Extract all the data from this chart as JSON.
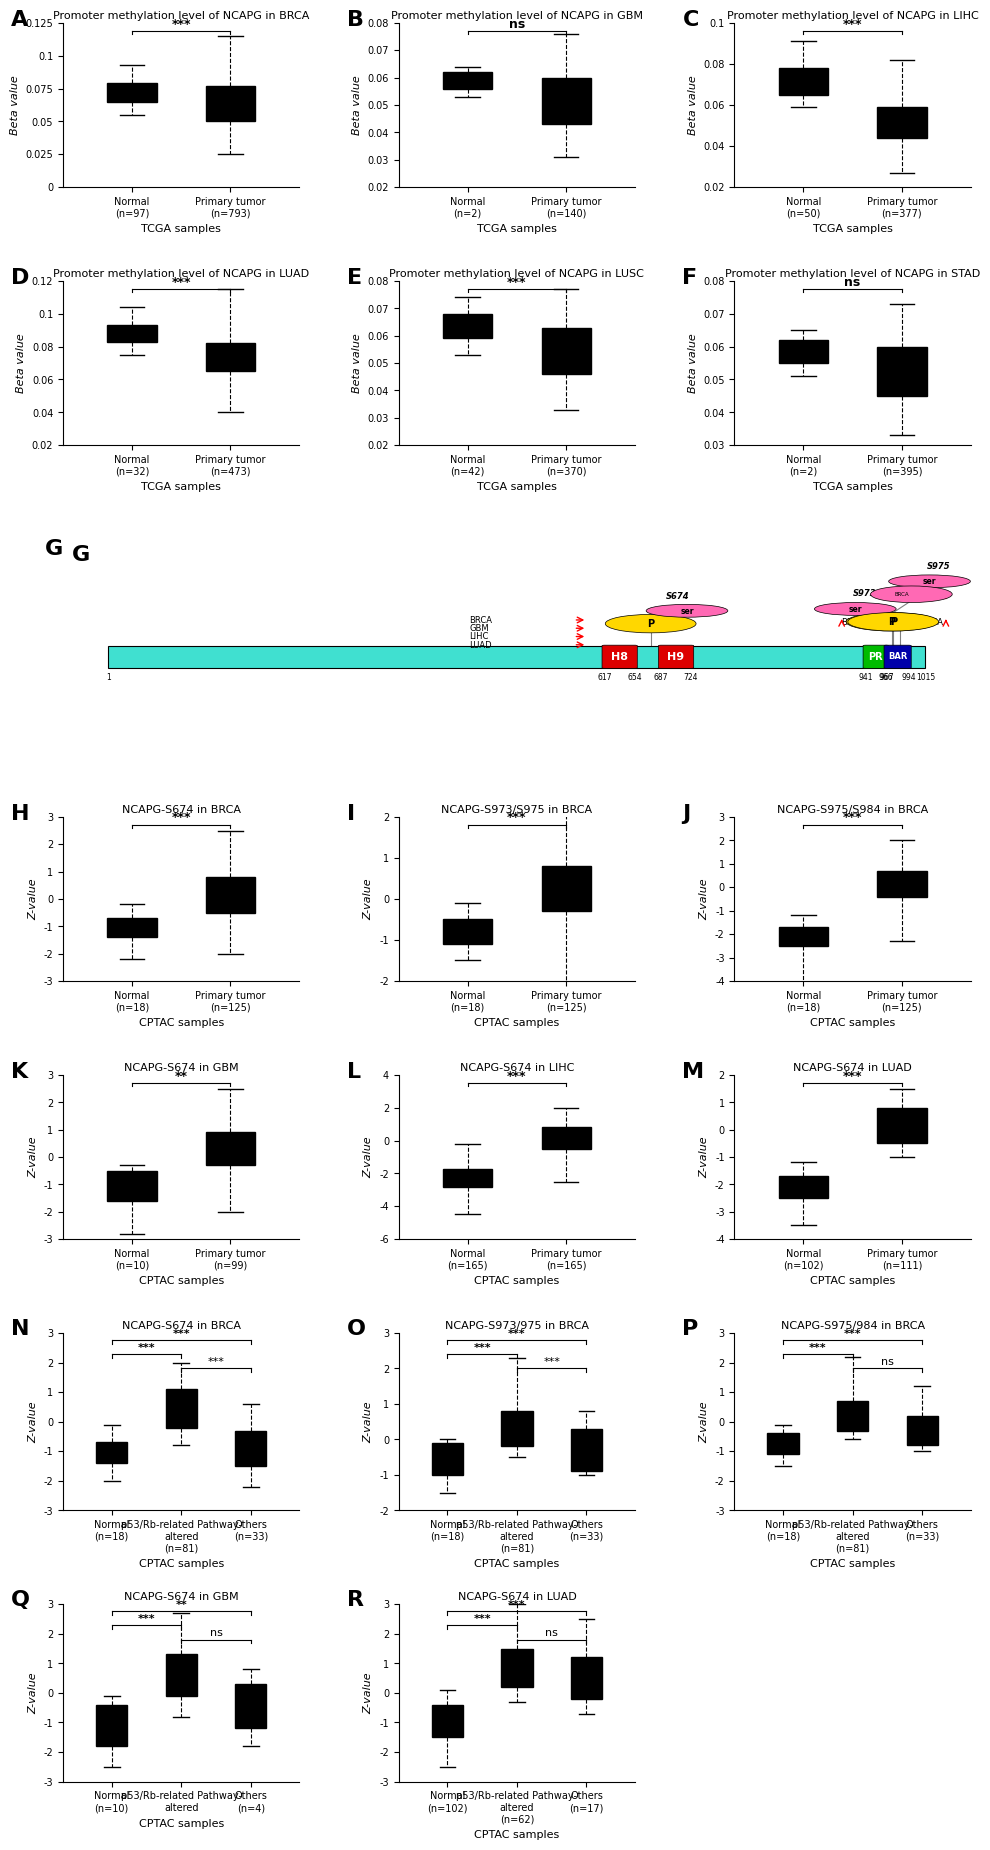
{
  "A": {
    "title": "Promoter methylation level of NCAPG in BRCA",
    "ylabel": "Beta value",
    "xlabel": "TCGA samples",
    "sig": "***",
    "groups": [
      "Normal\n(n=97)",
      "Primary tumor\n(n=793)"
    ],
    "colors": [
      "#4472C4",
      "#FF4500"
    ],
    "ylim": [
      0,
      0.125
    ],
    "yticks": [
      0,
      0.025,
      0.05,
      0.075,
      0.1,
      0.125
    ],
    "boxes": [
      {
        "med": 0.072,
        "q1": 0.065,
        "q3": 0.079,
        "whislo": 0.055,
        "whishi": 0.093
      },
      {
        "med": 0.065,
        "q1": 0.05,
        "q3": 0.077,
        "whislo": 0.025,
        "whishi": 0.115
      }
    ]
  },
  "B": {
    "title": "Promoter methylation level of NCAPG in GBM",
    "ylabel": "Beta value",
    "xlabel": "TCGA samples",
    "sig": "ns",
    "groups": [
      "Normal\n(n=2)",
      "Primary tumor\n(n=140)"
    ],
    "colors": [
      "#4472C4",
      "#FF4500"
    ],
    "ylim": [
      0.02,
      0.08
    ],
    "yticks": [
      0.02,
      0.03,
      0.04,
      0.05,
      0.06,
      0.07,
      0.08
    ],
    "boxes": [
      {
        "med": 0.059,
        "q1": 0.056,
        "q3": 0.062,
        "whislo": 0.053,
        "whishi": 0.064
      },
      {
        "med": 0.051,
        "q1": 0.043,
        "q3": 0.06,
        "whislo": 0.031,
        "whishi": 0.076
      }
    ]
  },
  "C": {
    "title": "Promoter methylation level of NCAPG in LIHC",
    "ylabel": "Beta value",
    "xlabel": "TCGA samples",
    "sig": "***",
    "groups": [
      "Normal\n(n=50)",
      "Primary tumor\n(n=377)"
    ],
    "colors": [
      "#4472C4",
      "#FF4500"
    ],
    "ylim": [
      0.02,
      0.1
    ],
    "yticks": [
      0.02,
      0.04,
      0.06,
      0.08,
      0.1
    ],
    "boxes": [
      {
        "med": 0.071,
        "q1": 0.065,
        "q3": 0.078,
        "whislo": 0.059,
        "whishi": 0.091
      },
      {
        "med": 0.051,
        "q1": 0.044,
        "q3": 0.059,
        "whislo": 0.027,
        "whishi": 0.082
      }
    ]
  },
  "D": {
    "title": "Promoter methylation level of NCAPG in LUAD",
    "ylabel": "Beta value",
    "xlabel": "TCGA samples",
    "sig": "***",
    "groups": [
      "Normal\n(n=32)",
      "Primary tumor\n(n=473)"
    ],
    "colors": [
      "#4472C4",
      "#FF4500"
    ],
    "ylim": [
      0.02,
      0.12
    ],
    "yticks": [
      0.02,
      0.04,
      0.06,
      0.08,
      0.1,
      0.12
    ],
    "boxes": [
      {
        "med": 0.087,
        "q1": 0.083,
        "q3": 0.093,
        "whislo": 0.075,
        "whishi": 0.104
      },
      {
        "med": 0.077,
        "q1": 0.065,
        "q3": 0.082,
        "whislo": 0.04,
        "whishi": 0.115
      }
    ]
  },
  "E": {
    "title": "Promoter methylation level of NCAPG in LUSC",
    "ylabel": "Beta value",
    "xlabel": "TCGA samples",
    "sig": "***",
    "groups": [
      "Normal\n(n=42)",
      "Primary tumor\n(n=370)"
    ],
    "colors": [
      "#4472C4",
      "#FF4500"
    ],
    "ylim": [
      0.02,
      0.08
    ],
    "yticks": [
      0.02,
      0.03,
      0.04,
      0.05,
      0.06,
      0.07,
      0.08
    ],
    "boxes": [
      {
        "med": 0.063,
        "q1": 0.059,
        "q3": 0.068,
        "whislo": 0.053,
        "whishi": 0.074
      },
      {
        "med": 0.055,
        "q1": 0.046,
        "q3": 0.063,
        "whislo": 0.033,
        "whishi": 0.077
      }
    ]
  },
  "F": {
    "title": "Promoter methylation level of NCAPG in STAD",
    "ylabel": "Beta value",
    "xlabel": "TCGA samples",
    "sig": "ns",
    "groups": [
      "Normal\n(n=2)",
      "Primary tumor\n(n=395)"
    ],
    "colors": [
      "#4472C4",
      "#FF4500"
    ],
    "ylim": [
      0.03,
      0.08
    ],
    "yticks": [
      0.03,
      0.04,
      0.05,
      0.06,
      0.07,
      0.08
    ],
    "boxes": [
      {
        "med": 0.058,
        "q1": 0.055,
        "q3": 0.062,
        "whislo": 0.051,
        "whishi": 0.065
      },
      {
        "med": 0.052,
        "q1": 0.045,
        "q3": 0.06,
        "whislo": 0.033,
        "whishi": 0.073
      }
    ]
  },
  "H": {
    "title": "NCAPG-S674 in BRCA",
    "ylabel": "Z-value",
    "xlabel": "CPTAC samples",
    "sig": "***",
    "groups": [
      "Normal\n(n=18)",
      "Primary tumor\n(n=125)"
    ],
    "colors": [
      "#4472C4",
      "#FF4500"
    ],
    "ylim": [
      -3,
      3
    ],
    "yticks": [
      -3,
      -2,
      -1,
      0,
      1,
      2,
      3
    ],
    "boxes": [
      {
        "med": -1.0,
        "q1": -1.4,
        "q3": -0.7,
        "whislo": -2.2,
        "whishi": -0.2
      },
      {
        "med": 0.1,
        "q1": -0.5,
        "q3": 0.8,
        "whislo": -2.0,
        "whishi": 2.5
      }
    ]
  },
  "I": {
    "title": "NCAPG-S973/S975 in BRCA",
    "ylabel": "Z-value",
    "xlabel": "CPTAC samples",
    "sig": "***",
    "groups": [
      "Normal\n(n=18)",
      "Primary tumor\n(n=125)"
    ],
    "colors": [
      "#4472C4",
      "#FF4500"
    ],
    "ylim": [
      -2,
      2
    ],
    "yticks": [
      -2,
      -1,
      0,
      1,
      2
    ],
    "boxes": [
      {
        "med": -0.8,
        "q1": -1.1,
        "q3": -0.5,
        "whislo": -1.5,
        "whishi": -0.1
      },
      {
        "med": 0.1,
        "q1": -0.3,
        "q3": 0.8,
        "whislo": -2.5,
        "whishi": 2.2
      }
    ]
  },
  "J": {
    "title": "NCAPG-S975/S984 in BRCA",
    "ylabel": "Z-value",
    "xlabel": "CPTAC samples",
    "sig": "***",
    "groups": [
      "Normal\n(n=18)",
      "Primary tumor\n(n=125)"
    ],
    "colors": [
      "#4472C4",
      "#FF4500"
    ],
    "ylim": [
      -4,
      3
    ],
    "yticks": [
      -4,
      -3,
      -2,
      -1,
      0,
      1,
      2,
      3
    ],
    "boxes": [
      {
        "med": -2.1,
        "q1": -2.5,
        "q3": -1.7,
        "whislo": -4.5,
        "whishi": -1.2
      },
      {
        "med": 0.0,
        "q1": -0.4,
        "q3": 0.7,
        "whislo": -2.3,
        "whishi": 2.0
      }
    ]
  },
  "K": {
    "title": "NCAPG-S674 in GBM",
    "ylabel": "Z-value",
    "xlabel": "CPTAC samples",
    "sig": "**",
    "groups": [
      "Normal\n(n=10)",
      "Primary tumor\n(n=99)"
    ],
    "colors": [
      "#4472C4",
      "#FF4500"
    ],
    "ylim": [
      -3,
      3
    ],
    "yticks": [
      -3,
      -2,
      -1,
      0,
      1,
      2,
      3
    ],
    "boxes": [
      {
        "med": -1.0,
        "q1": -1.6,
        "q3": -0.5,
        "whislo": -2.8,
        "whishi": -0.3
      },
      {
        "med": 0.15,
        "q1": -0.3,
        "q3": 0.9,
        "whislo": -2.0,
        "whishi": 2.5
      }
    ]
  },
  "L": {
    "title": "NCAPG-S674 in LIHC",
    "ylabel": "Z-value",
    "xlabel": "CPTAC samples",
    "sig": "***",
    "groups": [
      "Normal\n(n=165)",
      "Primary tumor\n(n=165)"
    ],
    "colors": [
      "#4472C4",
      "#FF4500"
    ],
    "ylim": [
      -6,
      4
    ],
    "yticks": [
      -6,
      -4,
      -2,
      0,
      2,
      4
    ],
    "boxes": [
      {
        "med": -2.2,
        "q1": -2.8,
        "q3": -1.7,
        "whislo": -4.5,
        "whishi": -0.2
      },
      {
        "med": 0.0,
        "q1": -0.5,
        "q3": 0.8,
        "whislo": -2.5,
        "whishi": 2.0
      }
    ]
  },
  "M": {
    "title": "NCAPG-S674 in LUAD",
    "ylabel": "Z-value",
    "xlabel": "CPTAC samples",
    "sig": "***",
    "groups": [
      "Normal\n(n=102)",
      "Primary tumor\n(n=111)"
    ],
    "colors": [
      "#4472C4",
      "#FF4500"
    ],
    "ylim": [
      -4,
      2
    ],
    "yticks": [
      -4,
      -3,
      -2,
      -1,
      0,
      1,
      2
    ],
    "boxes": [
      {
        "med": -2.0,
        "q1": -2.5,
        "q3": -1.7,
        "whislo": -3.5,
        "whishi": -1.2
      },
      {
        "med": 0.0,
        "q1": -0.5,
        "q3": 0.8,
        "whislo": -1.0,
        "whishi": 1.5
      }
    ]
  },
  "N": {
    "title": "NCAPG-S674 in BRCA",
    "ylabel": "Z-value",
    "xlabel": "CPTAC samples",
    "sig1": "***",
    "sig2": "***",
    "sig3": "***",
    "groups": [
      "Normal\n(n=18)",
      "p53/Rb-related Pathway-\naltered\n(n=81)",
      "Others\n(n=33)"
    ],
    "colors": [
      "#4472C4",
      "#FF4500",
      "#FFA500"
    ],
    "ylim": [
      -3,
      3
    ],
    "yticks": [
      -3,
      -2,
      -1,
      0,
      1,
      2,
      3
    ],
    "boxes": [
      {
        "med": -1.0,
        "q1": -1.4,
        "q3": -0.7,
        "whislo": -2.0,
        "whishi": -0.1
      },
      {
        "med": 0.4,
        "q1": -0.2,
        "q3": 1.1,
        "whislo": -0.8,
        "whishi": 2.0
      },
      {
        "med": -0.9,
        "q1": -1.5,
        "q3": -0.3,
        "whislo": -2.2,
        "whishi": 0.6
      }
    ]
  },
  "O": {
    "title": "NCAPG-S973/975 in BRCA",
    "ylabel": "Z-value",
    "xlabel": "CPTAC samples",
    "sig1": "***",
    "sig2": "***",
    "sig3": "***",
    "groups": [
      "Normal\n(n=18)",
      "p53/Rb-related Pathway-\naltered\n(n=81)",
      "Others\n(n=33)"
    ],
    "colors": [
      "#4472C4",
      "#FF4500",
      "#FFA500"
    ],
    "ylim": [
      -2,
      3
    ],
    "yticks": [
      -2,
      -1,
      0,
      1,
      2,
      3
    ],
    "boxes": [
      {
        "med": -0.5,
        "q1": -1.0,
        "q3": -0.1,
        "whislo": -1.5,
        "whishi": 0.0
      },
      {
        "med": 0.2,
        "q1": -0.2,
        "q3": 0.8,
        "whislo": -0.5,
        "whishi": 2.3
      },
      {
        "med": -0.4,
        "q1": -0.9,
        "q3": 0.3,
        "whislo": -1.0,
        "whishi": 0.8
      }
    ]
  },
  "P": {
    "title": "NCAPG-S975/984 in BRCA",
    "ylabel": "Z-value",
    "xlabel": "CPTAC samples",
    "sig1": "***",
    "sig2": "***",
    "sig3": "ns",
    "groups": [
      "Normal\n(n=18)",
      "p53/Rb-related Pathway-\naltered\n(n=81)",
      "Others\n(n=33)"
    ],
    "colors": [
      "#4472C4",
      "#FF4500",
      "#FFA500"
    ],
    "ylim": [
      -3,
      3
    ],
    "yticks": [
      -3,
      -2,
      -1,
      0,
      1,
      2,
      3
    ],
    "boxes": [
      {
        "med": -0.7,
        "q1": -1.1,
        "q3": -0.4,
        "whislo": -1.5,
        "whishi": -0.1
      },
      {
        "med": 0.1,
        "q1": -0.3,
        "q3": 0.7,
        "whislo": -0.6,
        "whishi": 2.2
      },
      {
        "med": -0.4,
        "q1": -0.8,
        "q3": 0.2,
        "whislo": -1.0,
        "whishi": 1.2
      }
    ]
  },
  "Q": {
    "title": "NCAPG-S674 in GBM",
    "ylabel": "Z-value",
    "xlabel": "CPTAC samples",
    "sig1": "***",
    "sig2": "**",
    "sig3": "ns",
    "groups": [
      "Normal\n(n=10)",
      "p53/Rb-related Pathway-\naltered",
      "Others\n(n=4)"
    ],
    "colors": [
      "#4472C4",
      "#FF4500",
      "#FFA500"
    ],
    "ylim": [
      -3,
      3
    ],
    "yticks": [
      -3,
      -2,
      -1,
      0,
      1,
      2,
      3
    ],
    "boxes": [
      {
        "med": -1.0,
        "q1": -1.8,
        "q3": -0.4,
        "whislo": -2.5,
        "whishi": -0.1
      },
      {
        "med": 0.5,
        "q1": -0.1,
        "q3": 1.3,
        "whislo": -0.8,
        "whishi": 2.7
      },
      {
        "med": -0.5,
        "q1": -1.2,
        "q3": 0.3,
        "whislo": -1.8,
        "whishi": 0.8
      }
    ]
  },
  "R": {
    "title": "NCAPG-S674 in LUAD",
    "ylabel": "Z-value",
    "xlabel": "CPTAC samples",
    "sig1": "***",
    "sig2": "***",
    "sig3": "ns",
    "groups": [
      "Normal\n(n=102)",
      "p53/Rb-related Pathway-\naltered\n(n=62)",
      "Others\n(n=17)"
    ],
    "colors": [
      "#4472C4",
      "#FF4500",
      "#FFA500"
    ],
    "ylim": [
      -3,
      3
    ],
    "yticks": [
      -3,
      -2,
      -1,
      0,
      1,
      2,
      3
    ],
    "boxes": [
      {
        "med": -0.9,
        "q1": -1.5,
        "q3": -0.4,
        "whislo": -2.5,
        "whishi": 0.1
      },
      {
        "med": 0.8,
        "q1": 0.2,
        "q3": 1.5,
        "whislo": -0.3,
        "whishi": 3.0
      },
      {
        "med": 0.5,
        "q1": -0.2,
        "q3": 1.2,
        "whislo": -0.7,
        "whishi": 2.5
      }
    ]
  }
}
